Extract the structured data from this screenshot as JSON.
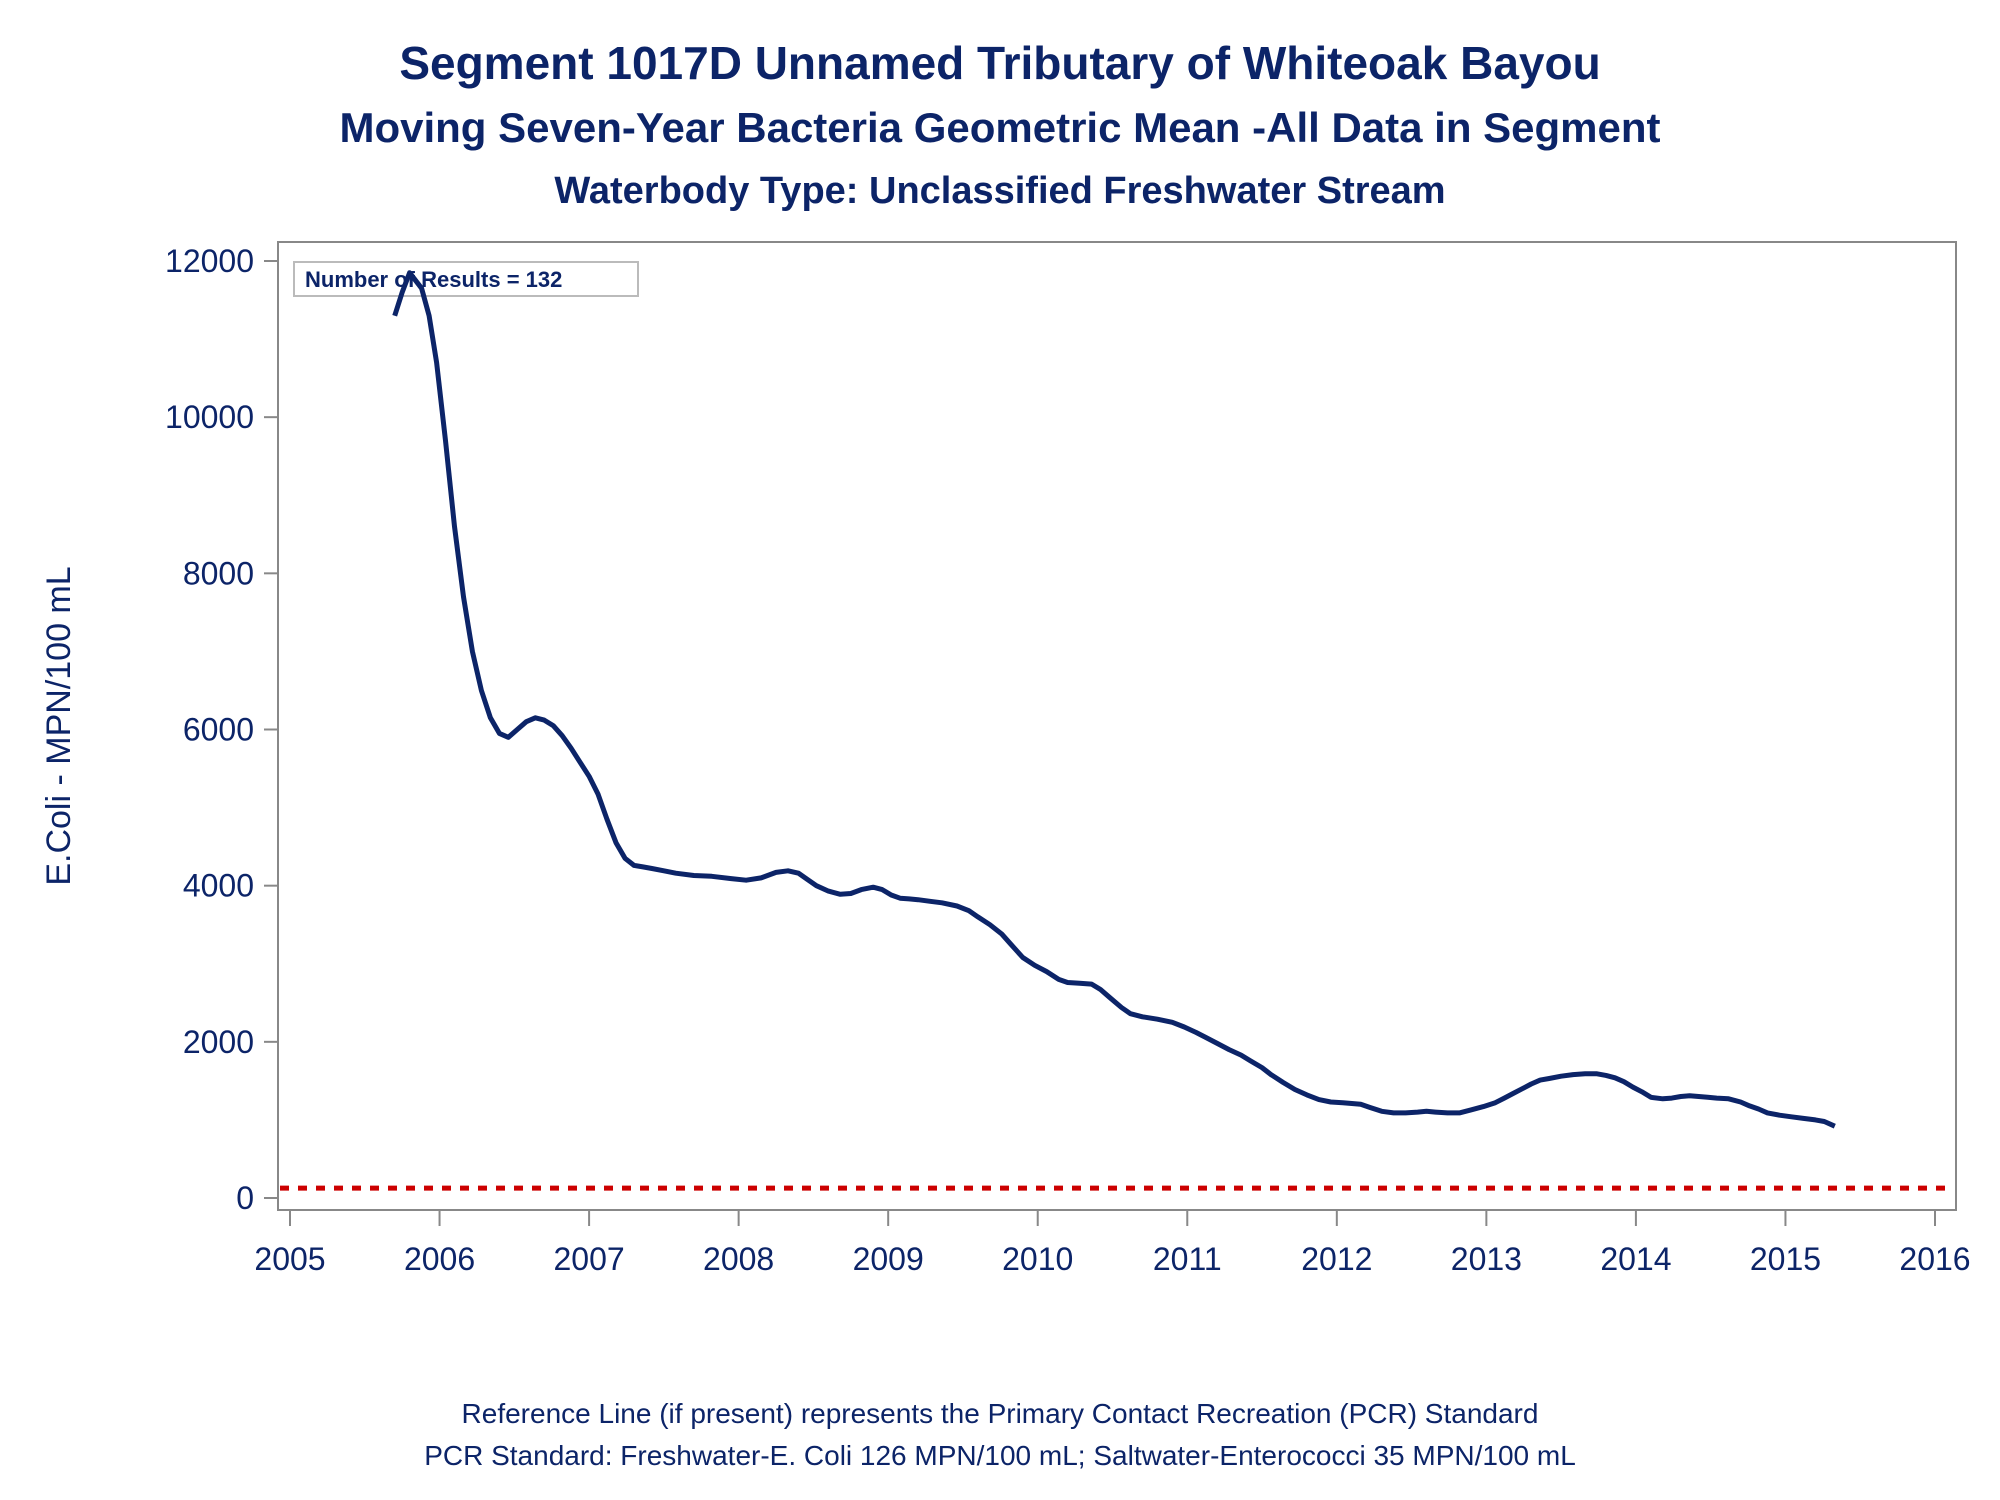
{
  "titles": {
    "line1": "Segment 1017D    Unnamed Tributary of Whiteoak Bayou",
    "line2": "Moving Seven-Year Bacteria Geometric Mean -All Data in Segment",
    "line3": "Waterbody Type: Unclassified Freshwater Stream"
  },
  "footnotes": {
    "line1": "Reference Line (if present) represents the Primary Contact Recreation (PCR) Standard",
    "line2": "PCR Standard: Freshwater-E. Coli 126 MPN/100 mL; Saltwater-Enterococci 35 MPN/100 mL"
  },
  "colors": {
    "series": "#0c2468",
    "reference": "#cc0000",
    "frame": "#888888",
    "text": "#0c2468"
  },
  "chart_data": {
    "type": "line",
    "ylabel": "E.Coli - MPN/100 mL",
    "xlabel": "",
    "xlim": [
      2005,
      2016
    ],
    "ylim": [
      -150,
      12300
    ],
    "x_ticks": [
      2005,
      2006,
      2007,
      2008,
      2009,
      2010,
      2011,
      2012,
      2013,
      2014,
      2015,
      2016
    ],
    "x_tick_labels": [
      "2005",
      "2006",
      "2007",
      "2008",
      "2009",
      "2010",
      "2011",
      "2012",
      "2013",
      "2014",
      "2015",
      "2016"
    ],
    "y_ticks": [
      0,
      2000,
      4000,
      6000,
      8000,
      10000,
      12000
    ],
    "y_tick_labels": [
      "0",
      "2000",
      "4000",
      "6000",
      "8000",
      "10000",
      "12000"
    ],
    "annotation": "Number of Results = 132",
    "reference_line": {
      "value": 126,
      "style": "dotted"
    },
    "grid": false,
    "series": [
      {
        "x": [
          2005.7,
          2005.75,
          2005.8,
          2005.88,
          2005.93,
          2005.98,
          2006.04,
          2006.1,
          2006.16,
          2006.22,
          2006.28,
          2006.34,
          2006.4,
          2006.46,
          2006.52,
          2006.58,
          2006.64,
          2006.7,
          2006.76,
          2006.82,
          2006.88,
          2006.94,
          2007.0,
          2007.06,
          2007.12,
          2007.18,
          2007.24,
          2007.3,
          2007.36,
          2007.42,
          2007.5,
          2007.58,
          2007.7,
          2007.82,
          2007.95,
          2008.05,
          2008.15,
          2008.25,
          2008.33,
          2008.4,
          2008.46,
          2008.52,
          2008.6,
          2008.68,
          2008.75,
          2008.82,
          2008.9,
          2008.96,
          2009.02,
          2009.08,
          2009.14,
          2009.2,
          2009.28,
          2009.36,
          2009.46,
          2009.54,
          2009.6,
          2009.68,
          2009.76,
          2009.82,
          2009.9,
          2009.98,
          2010.06,
          2010.14,
          2010.2,
          2010.28,
          2010.36,
          2010.42,
          2010.48,
          2010.56,
          2010.62,
          2010.7,
          2010.8,
          2010.9,
          2010.98,
          2011.06,
          2011.12,
          2011.2,
          2011.28,
          2011.36,
          2011.42,
          2011.5,
          2011.56,
          2011.64,
          2011.72,
          2011.8,
          2011.88,
          2011.96,
          2012.04,
          2012.1,
          2012.16,
          2012.22,
          2012.3,
          2012.38,
          2012.46,
          2012.54,
          2012.6,
          2012.66,
          2012.74,
          2012.82,
          2012.9,
          2012.98,
          2013.06,
          2013.12,
          2013.18,
          2013.24,
          2013.3,
          2013.36,
          2013.42,
          2013.5,
          2013.58,
          2013.66,
          2013.74,
          2013.8,
          2013.86,
          2013.92,
          2013.98,
          2014.04,
          2014.1,
          2014.18,
          2014.24,
          2014.3,
          2014.36,
          2014.42,
          2014.48,
          2014.54,
          2014.62,
          2014.7,
          2014.76,
          2014.82,
          2014.88,
          2014.96,
          2015.04,
          2015.12,
          2015.2,
          2015.26,
          2015.33
        ],
        "y": [
          11300,
          11600,
          11850,
          11650,
          11300,
          10700,
          9700,
          8600,
          7700,
          7000,
          6500,
          6150,
          5950,
          5900,
          6000,
          6100,
          6150,
          6120,
          6050,
          5920,
          5760,
          5580,
          5400,
          5170,
          4850,
          4550,
          4350,
          4260,
          4240,
          4220,
          4190,
          4160,
          4130,
          4120,
          4090,
          4070,
          4100,
          4170,
          4190,
          4160,
          4080,
          4000,
          3930,
          3890,
          3900,
          3950,
          3980,
          3950,
          3880,
          3840,
          3830,
          3820,
          3800,
          3780,
          3740,
          3680,
          3600,
          3500,
          3380,
          3250,
          3080,
          2980,
          2900,
          2800,
          2760,
          2750,
          2740,
          2670,
          2570,
          2440,
          2360,
          2320,
          2290,
          2250,
          2190,
          2120,
          2060,
          1980,
          1900,
          1830,
          1760,
          1670,
          1580,
          1480,
          1390,
          1320,
          1260,
          1230,
          1220,
          1210,
          1200,
          1160,
          1110,
          1090,
          1090,
          1100,
          1110,
          1100,
          1090,
          1090,
          1130,
          1170,
          1220,
          1280,
          1340,
          1400,
          1460,
          1510,
          1530,
          1560,
          1580,
          1590,
          1590,
          1570,
          1540,
          1490,
          1420,
          1360,
          1290,
          1270,
          1280,
          1300,
          1310,
          1300,
          1290,
          1280,
          1270,
          1230,
          1180,
          1140,
          1090,
          1060,
          1040,
          1020,
          1000,
          980,
          920
        ]
      }
    ]
  }
}
